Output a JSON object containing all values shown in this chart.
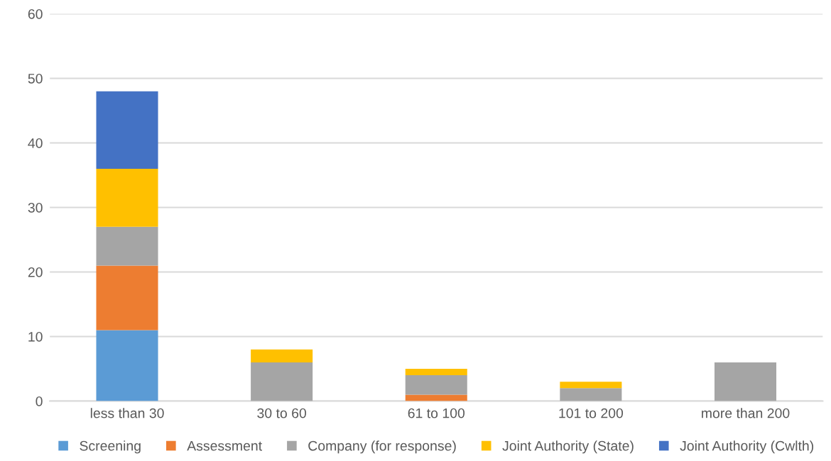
{
  "chart_data": {
    "type": "bar",
    "stacked": true,
    "categories": [
      "less than 30",
      "30 to 60",
      "61 to 100",
      "101 to 200",
      "more than 200"
    ],
    "series": [
      {
        "name": "Screening",
        "color": "#5b9bd5",
        "values": [
          11,
          0,
          0,
          0,
          0
        ]
      },
      {
        "name": "Assessment",
        "color": "#ed7d31",
        "values": [
          10,
          0,
          1,
          0,
          0
        ]
      },
      {
        "name": "Company (for response)",
        "color": "#a5a5a5",
        "values": [
          6,
          6,
          3,
          2,
          6
        ]
      },
      {
        "name": "Joint Authority (State)",
        "color": "#ffc000",
        "values": [
          9,
          2,
          1,
          1,
          0
        ]
      },
      {
        "name": "Joint Authority (Cwlth)",
        "color": "#4472c4",
        "values": [
          12,
          0,
          0,
          0,
          0
        ]
      }
    ],
    "ylim": [
      0,
      60
    ],
    "yticks": [
      0,
      10,
      20,
      30,
      40,
      50,
      60
    ],
    "grid": "y",
    "legend": "bottom"
  }
}
